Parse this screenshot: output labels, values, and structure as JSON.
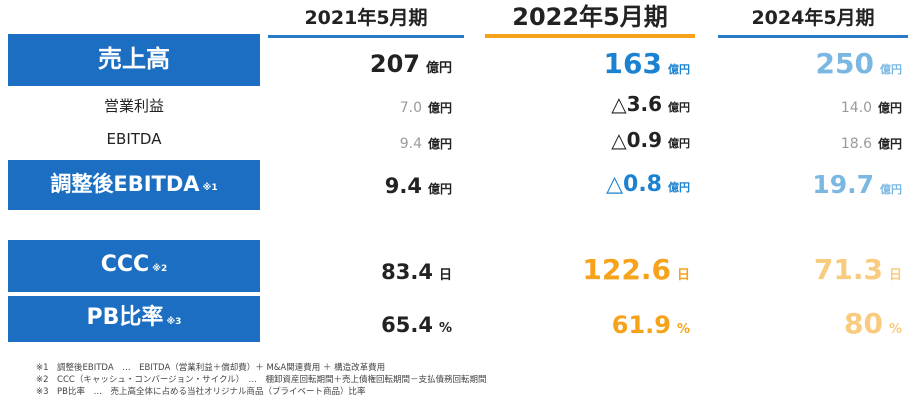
{
  "columns": [
    "2021年5月期",
    "2022年5月期",
    "2024年5月期"
  ],
  "rows": {
    "sales": {
      "label": "売上高",
      "values": [
        "207",
        "163",
        "250"
      ],
      "unit": "億円"
    },
    "op_profit": {
      "label": "営業利益",
      "values": [
        "7.0",
        "△3.6",
        "14.0"
      ],
      "unit": "億円"
    },
    "ebitda": {
      "label": "EBITDA",
      "values": [
        "9.4",
        "△0.9",
        "18.6"
      ],
      "unit": "億円"
    },
    "adj_ebitda": {
      "label": "調整後EBITDA",
      "mark": "※1",
      "values": [
        "9.4",
        "△0.8",
        "19.7"
      ],
      "unit": "億円"
    },
    "ccc": {
      "label": "CCC",
      "mark": "※2",
      "values": [
        "83.4",
        "122.6",
        "71.3"
      ],
      "unit": "日"
    },
    "pb": {
      "label": "PB比率",
      "mark": "※3",
      "values": [
        "65.4",
        "61.9",
        "80"
      ],
      "unit": "%"
    }
  },
  "footnotes": [
    "※1　調整後EBITDA　…　EBITDA（営業利益＋償却費）＋ M&A関連費用 ＋ 構造改革費用",
    "※2　CCC（キャッシュ・コンバージョン・サイクル）　…　棚卸資産回転期間＋売上債権回転期間－支払債務回転期間",
    "※3　PB比率　…　売上高全体に占める当社オリジナル商品（プライベート商品）比率"
  ],
  "colors": {
    "label_box": "#1b6ec2",
    "col2021": "#222222",
    "col2022_blue": "#1b82d1",
    "col2022_orange": "#f7a21b",
    "col2024_blue": "#7ab8e3",
    "col2024_orange": "#f9cb7f",
    "muted": "#9a9a9a"
  }
}
